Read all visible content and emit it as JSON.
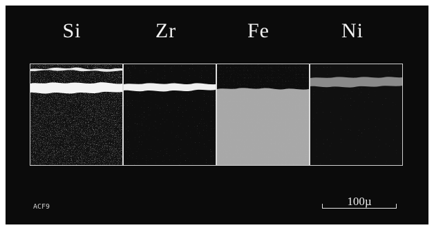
{
  "element_labels": [
    "Si",
    "Zr",
    "Fe",
    "Ni"
  ],
  "sample_id": "ACF9",
  "scale_bar": {
    "label": "100µ",
    "length_um": 100
  },
  "colors": {
    "background": "#0b0b0b",
    "fe_region": "#a8a8a8",
    "ni_layer": "#8a8a8a",
    "bright_band": "#f4f4f4"
  }
}
